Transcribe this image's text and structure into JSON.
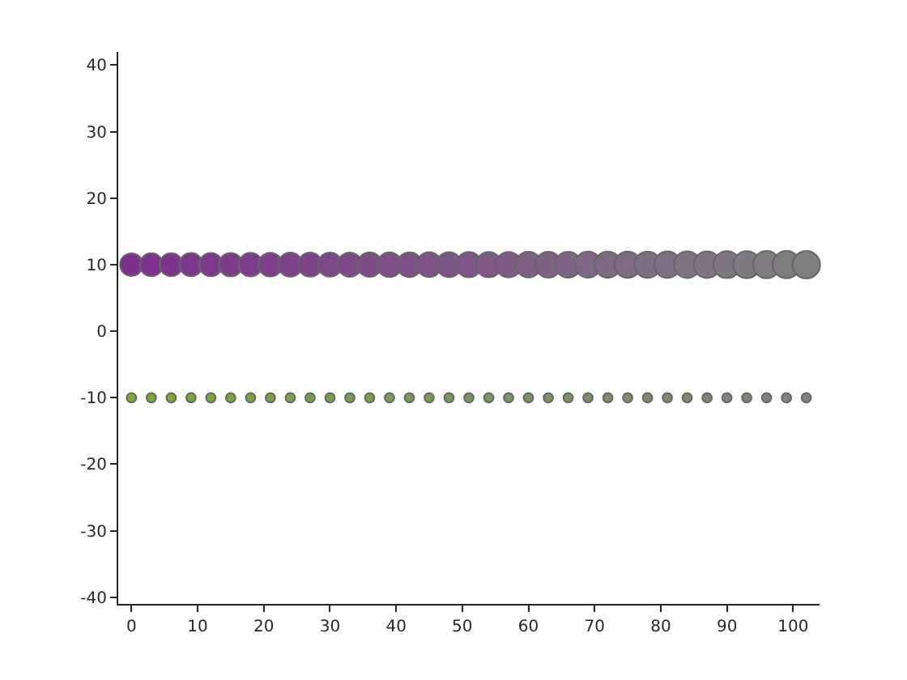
{
  "chart_data": {
    "type": "bubble",
    "x": [
      0,
      3,
      6,
      9,
      12,
      15,
      18,
      21,
      24,
      27,
      30,
      33,
      36,
      39,
      42,
      45,
      48,
      51,
      54,
      57,
      60,
      63,
      66,
      69,
      72,
      75,
      78,
      81,
      84,
      87,
      90,
      93,
      96,
      99,
      102
    ],
    "series": [
      {
        "values": [
          10,
          10,
          10,
          10,
          10,
          10,
          10,
          10,
          10,
          10,
          10,
          10,
          10,
          10,
          10,
          10,
          10,
          10,
          10,
          10,
          10,
          10,
          10,
          10,
          10,
          10,
          10,
          10,
          10,
          10,
          10,
          10,
          10,
          10,
          10
        ],
        "sizes": [
          0.68,
          0.69,
          0.7,
          0.71,
          0.72,
          0.73,
          0.74,
          0.75,
          0.76,
          0.76,
          0.77,
          0.78,
          0.79,
          0.8,
          0.81,
          0.82,
          0.83,
          0.84,
          0.85,
          0.86,
          0.87,
          0.88,
          0.89,
          0.9,
          0.91,
          0.92,
          0.92,
          0.93,
          0.94,
          0.95,
          0.96,
          0.97,
          0.98,
          0.99,
          1
        ],
        "colors": [
          "#7e2f8e",
          "#7e318e",
          "#7e348d",
          "#7e368d",
          "#7e398c",
          "#7e3b8c",
          "#7e3d8c",
          "#7e408b",
          "#7e428b",
          "#7e448a",
          "#7e478a",
          "#7e4989",
          "#7e4c89",
          "#7e4e89",
          "#7e5088",
          "#7e5388",
          "#7e5587",
          "#7f5787",
          "#7f5a87",
          "#7f5c86",
          "#7f5f86",
          "#7f6185",
          "#7f6385",
          "#7f6685",
          "#7f6884",
          "#7f6a84",
          "#7f6d83",
          "#7f6f83",
          "#7f7283",
          "#7f7482",
          "#7f7682",
          "#7f7981",
          "#7f7b81",
          "#7f7d80",
          "#808080"
        ]
      },
      {
        "values": [
          -10,
          -10,
          -10,
          -10,
          -10,
          -10,
          -10,
          -10,
          -10,
          -10,
          -10,
          -10,
          -10,
          -10,
          -10,
          -10,
          -10,
          -10,
          -10,
          -10,
          -10,
          -10,
          -10,
          -10,
          -10,
          -10,
          -10,
          -10,
          -10,
          -10,
          -10,
          -10,
          -10,
          -10,
          -10
        ],
        "sizes": [
          0.12,
          0.12,
          0.12,
          0.12,
          0.12,
          0.12,
          0.12,
          0.12,
          0.12,
          0.12,
          0.12,
          0.12,
          0.12,
          0.12,
          0.12,
          0.12,
          0.12,
          0.12,
          0.12,
          0.12,
          0.12,
          0.12,
          0.12,
          0.12,
          0.12,
          0.12,
          0.12,
          0.12,
          0.12,
          0.12,
          0.12,
          0.12,
          0.12,
          0.12,
          0.12
        ],
        "colors": [
          "#77ac30",
          "#77ab32",
          "#78a935",
          "#78a837",
          "#78a739",
          "#78a63c",
          "#79a43e",
          "#79a340",
          "#79a243",
          "#79a045",
          "#7a9f48",
          "#7a9e4a",
          "#7a9c4c",
          "#7a9b4f",
          "#7b9a51",
          "#7b9953",
          "#7b9756",
          "#7b9658",
          "#7c955a",
          "#7c935d",
          "#7c925f",
          "#7d9161",
          "#7d9064",
          "#7d8e66",
          "#7d8d68",
          "#7e8c6b",
          "#7e8a6d",
          "#7e896f",
          "#7e8872",
          "#7f8674",
          "#7f8576",
          "#7f8479",
          "#7f827b",
          "#80817d",
          "#808080"
        ]
      }
    ],
    "xlim": [
      -2,
      104
    ],
    "xticks": [
      0,
      10,
      20,
      30,
      40,
      50,
      60,
      70,
      80,
      90,
      100
    ],
    "ylim": [
      -41,
      42
    ],
    "yticks": [
      -40,
      -30,
      -20,
      -10,
      0,
      10,
      20,
      30,
      40
    ],
    "grid": false
  }
}
